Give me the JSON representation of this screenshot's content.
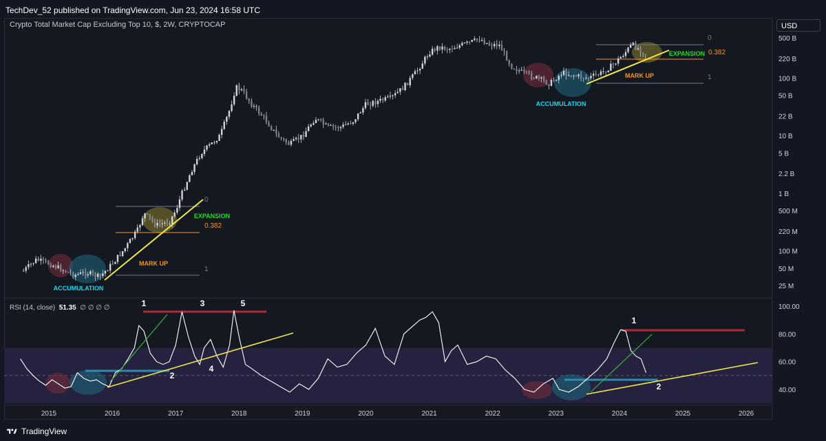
{
  "header": {
    "published_text": "TechDev_52 published on TradingView.com, Jun 23, 2024 16:58 UTC"
  },
  "colors": {
    "background": "#131722",
    "candle": "#d1d4dc",
    "trendline": "#f2e74a",
    "rsi_line": "#ffffff",
    "rsi_band": "#25223f",
    "resistance_red": "#b22b3b",
    "support_blue": "#2f8ab0",
    "accumulation_circle": "#1e6a80",
    "distribution_circle": "#7a2d3a",
    "expansion_circle": "#8a7f2f",
    "fib_orange": "#f7931a",
    "expansion_green": "#22dd22",
    "accumulation_text": "#19d7e8",
    "markup_text": "#f7931a"
  },
  "footer": {
    "brand": "TradingView",
    "logo_icon": "tradingview-logo-icon"
  },
  "chart_data": [
    {
      "type": "candlestick",
      "title": "Crypto Total Market Cap Excluding Top 10, $, 2W, CRYPTOCAP",
      "currency": "USD",
      "scale": "log",
      "yticks": [
        "500 B",
        "220 B",
        "100 B",
        "50 B",
        "22 B",
        "10 B",
        "5 B",
        "2.2 B",
        "1 B",
        "500 M",
        "220 M",
        "100 M",
        "50 M",
        "25 M"
      ],
      "ytick_values": [
        500000000000,
        220000000000,
        100000000000,
        50000000000,
        22000000000,
        10000000000,
        5000000000,
        2200000000,
        1000000000,
        500000000,
        220000000,
        100000000,
        50000000,
        25000000
      ],
      "x": [
        2014.6,
        2014.8,
        2015.0,
        2015.2,
        2015.4,
        2015.6,
        2015.8,
        2016.0,
        2016.2,
        2016.4,
        2016.5,
        2016.7,
        2016.9,
        2017.0,
        2017.1,
        2017.25,
        2017.4,
        2017.55,
        2017.7,
        2017.85,
        2017.95,
        2018.05,
        2018.2,
        2018.4,
        2018.6,
        2018.8,
        2019.0,
        2019.2,
        2019.4,
        2019.6,
        2019.8,
        2020.0,
        2020.2,
        2020.4,
        2020.6,
        2020.8,
        2021.0,
        2021.15,
        2021.3,
        2021.45,
        2021.6,
        2021.8,
        2021.95,
        2022.1,
        2022.3,
        2022.5,
        2022.7,
        2022.9,
        2023.1,
        2023.3,
        2023.5,
        2023.7,
        2023.9,
        2024.05,
        2024.2,
        2024.35,
        2024.45
      ],
      "y": [
        45000000,
        70000000,
        60000000,
        48000000,
        38000000,
        42000000,
        35000000,
        60000000,
        110000000,
        230000000,
        450000000,
        280000000,
        320000000,
        500000000,
        1000000000,
        2500000000,
        5000000000,
        7000000000,
        10000000000,
        28000000000,
        70000000000,
        60000000000,
        35000000000,
        20000000000,
        10000000000,
        7000000000,
        10000000000,
        20000000000,
        14000000000,
        14000000000,
        18000000000,
        35000000000,
        40000000000,
        45000000000,
        70000000000,
        130000000000,
        280000000000,
        350000000000,
        320000000000,
        360000000000,
        400000000000,
        480000000000,
        380000000000,
        380000000000,
        160000000000,
        120000000000,
        100000000000,
        80000000000,
        125000000000,
        110000000000,
        100000000000,
        120000000000,
        170000000000,
        250000000000,
        380000000000,
        300000000000,
        240000000000
      ],
      "annotations": {
        "accumulation_label": "ACCUMULATION",
        "markup_label": "MARK UP",
        "expansion_label": "EXPANSION",
        "fib_0": "0",
        "fib_0382": "0.382",
        "fib_1": "1"
      }
    },
    {
      "type": "line",
      "title": "RSI (14, close)",
      "current_value": "51.35",
      "na_marks": "∅ ∅ ∅ ∅",
      "yticks": [
        "100.00",
        "80.00",
        "60.00",
        "40.00"
      ],
      "ytick_values": [
        100,
        80,
        60,
        40
      ],
      "ylim": [
        28,
        102
      ],
      "band": [
        30,
        70
      ],
      "midline": 50,
      "xticks": [
        "2015",
        "2016",
        "2017",
        "2018",
        "2019",
        "2020",
        "2021",
        "2022",
        "2023",
        "2024",
        "2025",
        "2026"
      ],
      "xtick_values": [
        2015,
        2016,
        2017,
        2018,
        2019,
        2020,
        2021,
        2022,
        2023,
        2024,
        2025,
        2026
      ],
      "x": [
        2014.55,
        2014.65,
        2014.75,
        2014.85,
        2014.95,
        2015.05,
        2015.15,
        2015.25,
        2015.35,
        2015.45,
        2015.55,
        2015.65,
        2015.75,
        2015.85,
        2015.95,
        2016.05,
        2016.15,
        2016.25,
        2016.35,
        2016.42,
        2016.5,
        2016.6,
        2016.7,
        2016.8,
        2016.9,
        2017.0,
        2017.1,
        2017.2,
        2017.3,
        2017.38,
        2017.45,
        2017.55,
        2017.65,
        2017.75,
        2017.85,
        2017.92,
        2018.0,
        2018.1,
        2018.2,
        2018.35,
        2018.5,
        2018.65,
        2018.8,
        2018.95,
        2019.1,
        2019.25,
        2019.4,
        2019.55,
        2019.7,
        2019.85,
        2020.0,
        2020.15,
        2020.3,
        2020.45,
        2020.6,
        2020.75,
        2020.85,
        2020.95,
        2021.05,
        2021.15,
        2021.25,
        2021.35,
        2021.45,
        2021.6,
        2021.75,
        2021.9,
        2022.05,
        2022.2,
        2022.35,
        2022.5,
        2022.65,
        2022.8,
        2022.95,
        2023.05,
        2023.2,
        2023.35,
        2023.5,
        2023.65,
        2023.8,
        2023.92,
        2024.02,
        2024.1,
        2024.18,
        2024.26,
        2024.34,
        2024.42
      ],
      "y": [
        62,
        55,
        50,
        46,
        43,
        47,
        44,
        41,
        42,
        52,
        48,
        46,
        47,
        44,
        42,
        52,
        55,
        62,
        70,
        86,
        82,
        66,
        60,
        58,
        60,
        72,
        96,
        78,
        64,
        58,
        70,
        76,
        64,
        56,
        72,
        97,
        78,
        58,
        55,
        50,
        46,
        42,
        38,
        44,
        40,
        48,
        62,
        56,
        58,
        66,
        72,
        84,
        64,
        58,
        80,
        86,
        90,
        92,
        96,
        88,
        60,
        68,
        72,
        58,
        60,
        64,
        62,
        54,
        48,
        40,
        38,
        44,
        48,
        40,
        38,
        42,
        48,
        54,
        62,
        74,
        83,
        82,
        68,
        64,
        62,
        52
      ],
      "annotations": {
        "peak_1_top": "1",
        "peak_3": "3",
        "peak_5": "5",
        "trough_2_left": "2",
        "trough_4": "4",
        "peak_1_right": "1",
        "trough_2_right": "2"
      }
    }
  ]
}
